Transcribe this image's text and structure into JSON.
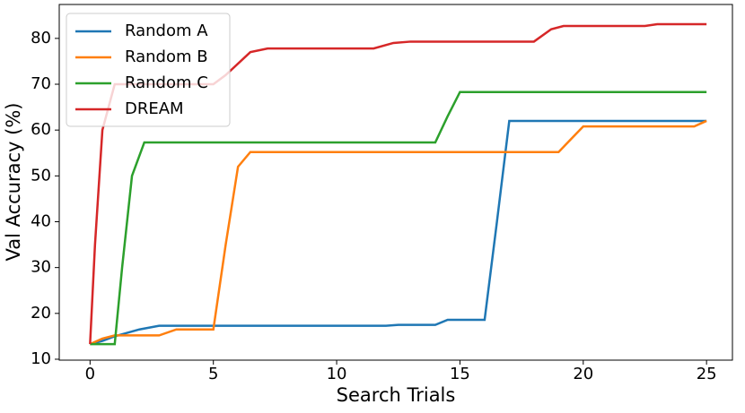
{
  "chart_data": {
    "type": "line",
    "xlabel": "Search Trials",
    "ylabel": "Val Accuracy (%)",
    "xlim": [
      -1.25,
      26.05
    ],
    "ylim": [
      9.8,
      87.4
    ],
    "xticks": [
      0,
      5,
      10,
      15,
      20,
      25
    ],
    "yticks": [
      10,
      20,
      30,
      40,
      50,
      60,
      70,
      80
    ],
    "legend": "upper-left",
    "series": [
      {
        "name": "Random A",
        "color": "#1f77b4",
        "x": [
          0,
          0.5,
          1,
          2,
          2.8,
          12,
          12.5,
          14,
          14.5,
          16,
          16.5,
          17,
          25
        ],
        "values": [
          13.3,
          14,
          15,
          16.5,
          17.3,
          17.3,
          17.5,
          17.5,
          18.6,
          18.6,
          40,
          62,
          62
        ]
      },
      {
        "name": "Random B",
        "color": "#ff7f0e",
        "x": [
          0,
          0.5,
          1,
          2.8,
          3.5,
          5,
          5.5,
          6,
          6.5,
          19,
          19.5,
          20,
          24.5,
          25
        ],
        "values": [
          13.3,
          14.5,
          15.2,
          15.2,
          16.5,
          16.5,
          35,
          52,
          55.2,
          55.2,
          58,
          60.8,
          60.8,
          62
        ]
      },
      {
        "name": "Random C",
        "color": "#2ca02c",
        "x": [
          0,
          1,
          1.3,
          1.7,
          2.2,
          14,
          14.5,
          15,
          25
        ],
        "values": [
          13.3,
          13.3,
          30,
          50,
          57.3,
          57.3,
          63,
          68.3,
          68.3
        ]
      },
      {
        "name": "DREAM",
        "color": "#d62728",
        "x": [
          0,
          0.2,
          0.5,
          1,
          5,
          5.5,
          6.5,
          7.2,
          11.5,
          12.3,
          13,
          18,
          18.7,
          19.2,
          22.5,
          23,
          25
        ],
        "values": [
          13.3,
          35,
          60,
          70,
          70,
          72,
          77,
          77.8,
          77.8,
          79,
          79.3,
          79.3,
          82,
          82.7,
          82.7,
          83.1,
          83.1
        ]
      }
    ]
  }
}
